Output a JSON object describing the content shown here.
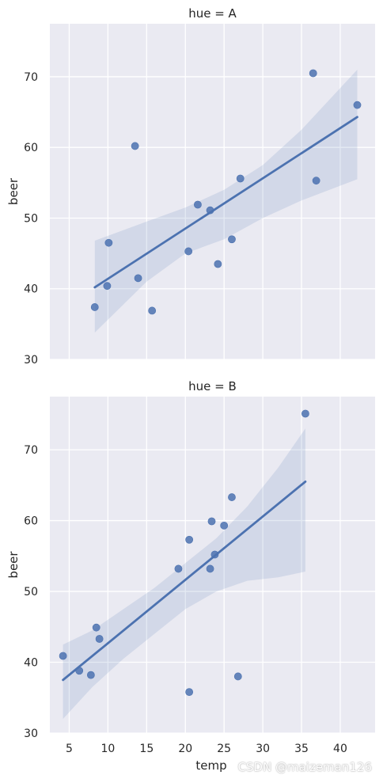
{
  "chart_data": [
    {
      "type": "scatter",
      "title": "hue = A",
      "xlabel": "",
      "ylabel": "beer",
      "xlim": [
        2.5,
        44.5
      ],
      "ylim": [
        30,
        77.5
      ],
      "xticks": [],
      "yticks": [
        30,
        40,
        50,
        60,
        70
      ],
      "grid": true,
      "color": "#4c72b0",
      "points": [
        {
          "x": 8.3,
          "y": 37.4
        },
        {
          "x": 9.9,
          "y": 40.4
        },
        {
          "x": 10.1,
          "y": 46.5
        },
        {
          "x": 13.5,
          "y": 60.2
        },
        {
          "x": 13.9,
          "y": 41.5
        },
        {
          "x": 15.7,
          "y": 36.9
        },
        {
          "x": 20.4,
          "y": 45.3
        },
        {
          "x": 21.6,
          "y": 51.9
        },
        {
          "x": 23.2,
          "y": 51.1
        },
        {
          "x": 24.2,
          "y": 43.5
        },
        {
          "x": 26.0,
          "y": 47.0
        },
        {
          "x": 27.1,
          "y": 55.6
        },
        {
          "x": 36.5,
          "y": 70.5
        },
        {
          "x": 36.9,
          "y": 55.3
        },
        {
          "x": 42.2,
          "y": 66.0
        }
      ],
      "regression": {
        "x": [
          8.3,
          42.2
        ],
        "y": [
          40.2,
          64.3
        ]
      },
      "ci_band": {
        "x": [
          8.3,
          15,
          20,
          25,
          30,
          35,
          42.2
        ],
        "lower": [
          33.8,
          41.0,
          45.0,
          47.0,
          50.0,
          52.5,
          55.5
        ],
        "upper": [
          46.8,
          49.5,
          51.5,
          54.0,
          57.5,
          62.5,
          71.0
        ]
      }
    },
    {
      "type": "scatter",
      "title": "hue = B",
      "xlabel": "temp",
      "ylabel": "beer",
      "xlim": [
        2.5,
        44.5
      ],
      "ylim": [
        30,
        77.5
      ],
      "xticks": [
        5,
        10,
        15,
        20,
        25,
        30,
        35,
        40
      ],
      "yticks": [
        30,
        40,
        50,
        60,
        70
      ],
      "grid": true,
      "color": "#4c72b0",
      "points": [
        {
          "x": 4.2,
          "y": 40.9
        },
        {
          "x": 6.3,
          "y": 38.8
        },
        {
          "x": 7.8,
          "y": 38.2
        },
        {
          "x": 8.5,
          "y": 44.9
        },
        {
          "x": 8.9,
          "y": 43.3
        },
        {
          "x": 19.1,
          "y": 53.2
        },
        {
          "x": 20.5,
          "y": 35.8
        },
        {
          "x": 20.5,
          "y": 57.3
        },
        {
          "x": 23.2,
          "y": 53.2
        },
        {
          "x": 23.4,
          "y": 59.9
        },
        {
          "x": 23.8,
          "y": 55.2
        },
        {
          "x": 25.0,
          "y": 59.3
        },
        {
          "x": 26.0,
          "y": 63.3
        },
        {
          "x": 26.8,
          "y": 38.0
        },
        {
          "x": 35.5,
          "y": 75.1
        }
      ],
      "regression": {
        "x": [
          4.2,
          35.5
        ],
        "y": [
          37.5,
          65.5
        ]
      },
      "ci_band": {
        "x": [
          4.2,
          8,
          12,
          16,
          20,
          24,
          28,
          32,
          35.5
        ],
        "lower": [
          32.0,
          36.5,
          40.5,
          44.0,
          47.5,
          50.0,
          51.5,
          52.0,
          52.8
        ],
        "upper": [
          42.5,
          44.5,
          47.5,
          50.5,
          54.0,
          57.5,
          62.0,
          67.5,
          73.0
        ]
      }
    }
  ],
  "watermark": "CSDN @maizeman126"
}
